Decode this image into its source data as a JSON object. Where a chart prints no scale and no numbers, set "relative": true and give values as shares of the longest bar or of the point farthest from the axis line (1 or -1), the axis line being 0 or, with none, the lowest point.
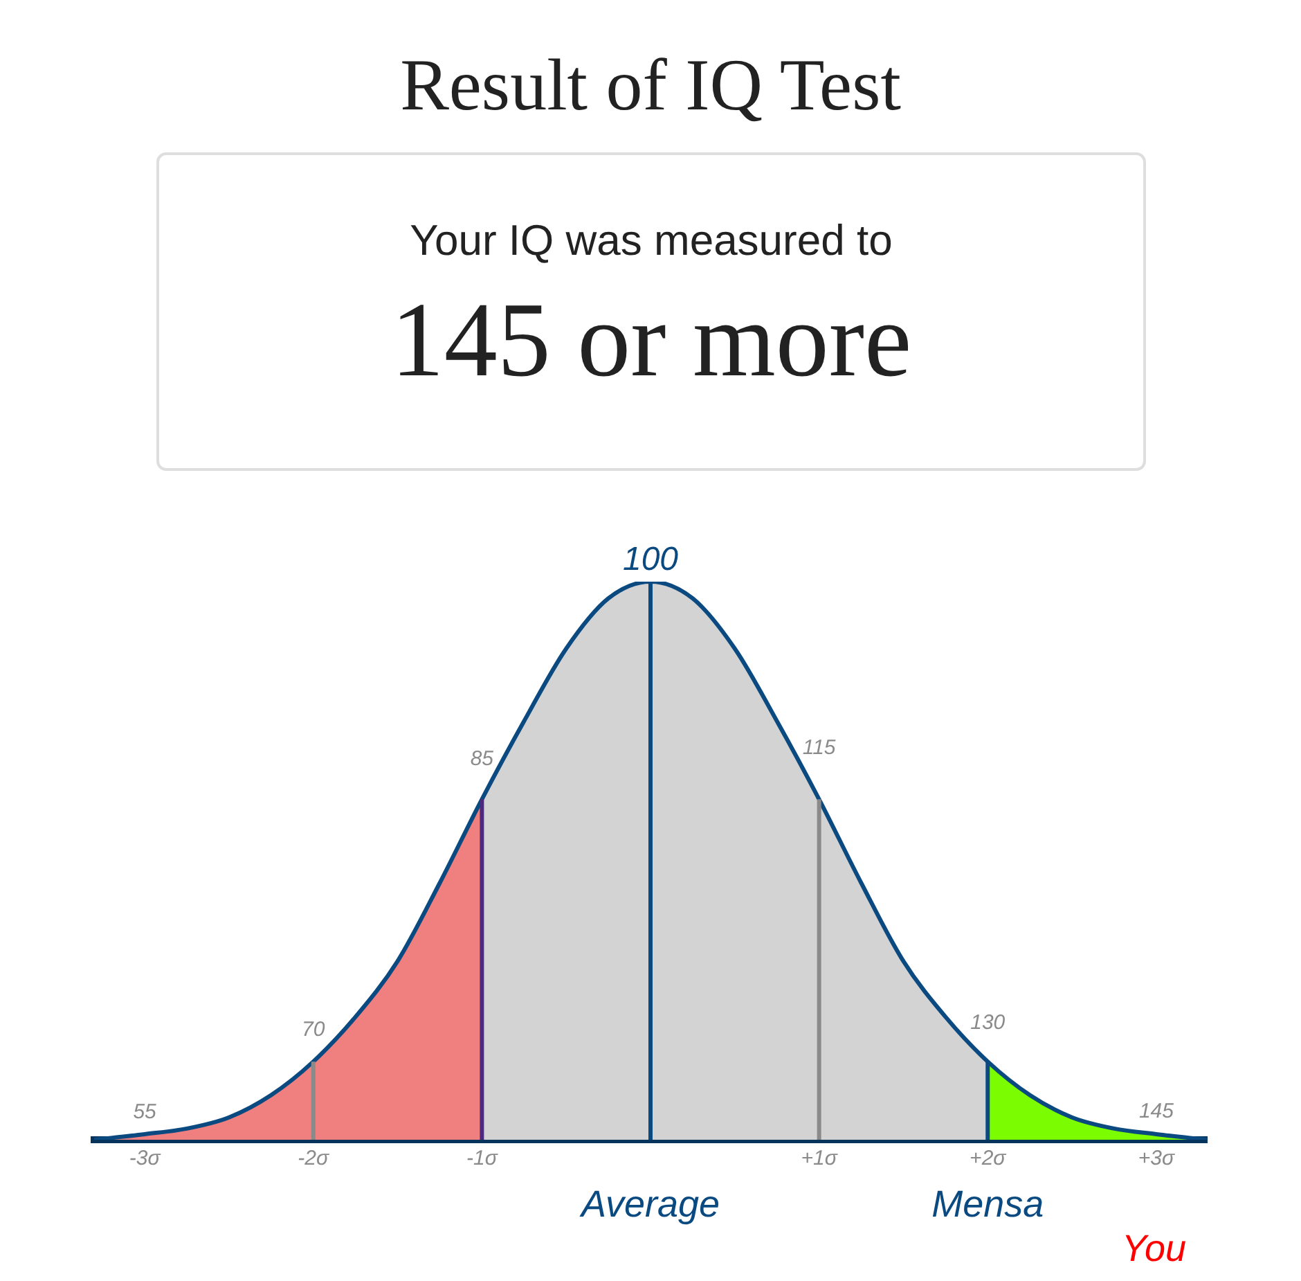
{
  "chart_data": {
    "type": "area",
    "title": "Result of IQ Test",
    "subtitle": "Your IQ was measured to",
    "relative": true,
    "xlim": [
      -3.3,
      3.3
    ],
    "xticks": [
      {
        "value": -3,
        "label": "-3σ"
      },
      {
        "value": -2,
        "label": "-2σ"
      },
      {
        "value": -1,
        "label": "-1σ"
      },
      {
        "value": 1,
        "label": "+1σ"
      },
      {
        "value": 2,
        "label": "+2σ"
      },
      {
        "value": 3,
        "label": "+3σ"
      }
    ],
    "marker": "none",
    "line_style": "solid",
    "series": [
      {
        "type": "area",
        "color": "#f08080",
        "x": [
          -3.3,
          -3,
          -2.75,
          -2.5,
          -2.25,
          -2,
          -1.75,
          -1.5,
          -1.25,
          -1
        ],
        "values": [
          0,
          0.01,
          0.02,
          0.04,
          0.08,
          0.14,
          0.22,
          0.32,
          0.46,
          0.61
        ]
      },
      {
        "type": "area",
        "color": "#d3d3d3",
        "x": [
          -1,
          -0.75,
          -0.5,
          -0.25,
          0,
          0.25,
          0.5,
          0.75,
          1,
          1.25,
          1.5,
          1.75,
          2
        ],
        "values": [
          0.61,
          0.75,
          0.88,
          0.97,
          1,
          0.97,
          0.88,
          0.75,
          0.61,
          0.46,
          0.32,
          0.22,
          0.14
        ]
      },
      {
        "type": "area",
        "color": "#7cfc00",
        "x": [
          2,
          2.25,
          2.5,
          2.75,
          3,
          3.3
        ],
        "values": [
          0.14,
          0.08,
          0.04,
          0.02,
          0.01,
          0
        ]
      },
      {
        "type": "line",
        "color": "#0b4a80",
        "x": [
          -3.3,
          -3,
          -2.75,
          -2.5,
          -2.25,
          -2,
          -1.75,
          -1.5,
          -1.25,
          -1,
          -0.75,
          -0.5,
          -0.25,
          0,
          0.25,
          0.5,
          0.75,
          1,
          1.25,
          1.5,
          1.75,
          2,
          2.25,
          2.5,
          2.75,
          3,
          3.3
        ],
        "values": [
          0,
          0.01,
          0.02,
          0.04,
          0.08,
          0.14,
          0.22,
          0.32,
          0.46,
          0.61,
          0.75,
          0.88,
          0.97,
          1,
          0.97,
          0.88,
          0.75,
          0.61,
          0.46,
          0.32,
          0.22,
          0.14,
          0.08,
          0.04,
          0.02,
          0.01,
          0
        ]
      }
    ],
    "ref_lines": [
      {
        "axis": "x",
        "value": -2,
        "color": "#8a8a8a"
      },
      {
        "axis": "x",
        "value": -1,
        "color": "#4b2a7e"
      },
      {
        "axis": "x",
        "value": 0,
        "color": "#0b4a80",
        "label": "Average"
      },
      {
        "axis": "x",
        "value": 1,
        "color": "#8a8a8a"
      },
      {
        "axis": "x",
        "value": 2,
        "color": "#0b4a80",
        "label": "Mensa"
      }
    ],
    "annotations": [
      "145 or more",
      {
        "text": "55",
        "x": -3,
        "y": 0.01
      },
      {
        "text": "70",
        "x": -2,
        "y": 0.14
      },
      {
        "text": "85",
        "x": -1,
        "y": 0.61
      },
      {
        "text": "100",
        "x": 0,
        "y": 1
      },
      {
        "text": "115",
        "x": 1,
        "y": 0.61
      },
      {
        "text": "130",
        "x": 2,
        "y": 0.14
      },
      {
        "text": "145",
        "x": 3,
        "y": 0.01
      },
      "You"
    ]
  }
}
